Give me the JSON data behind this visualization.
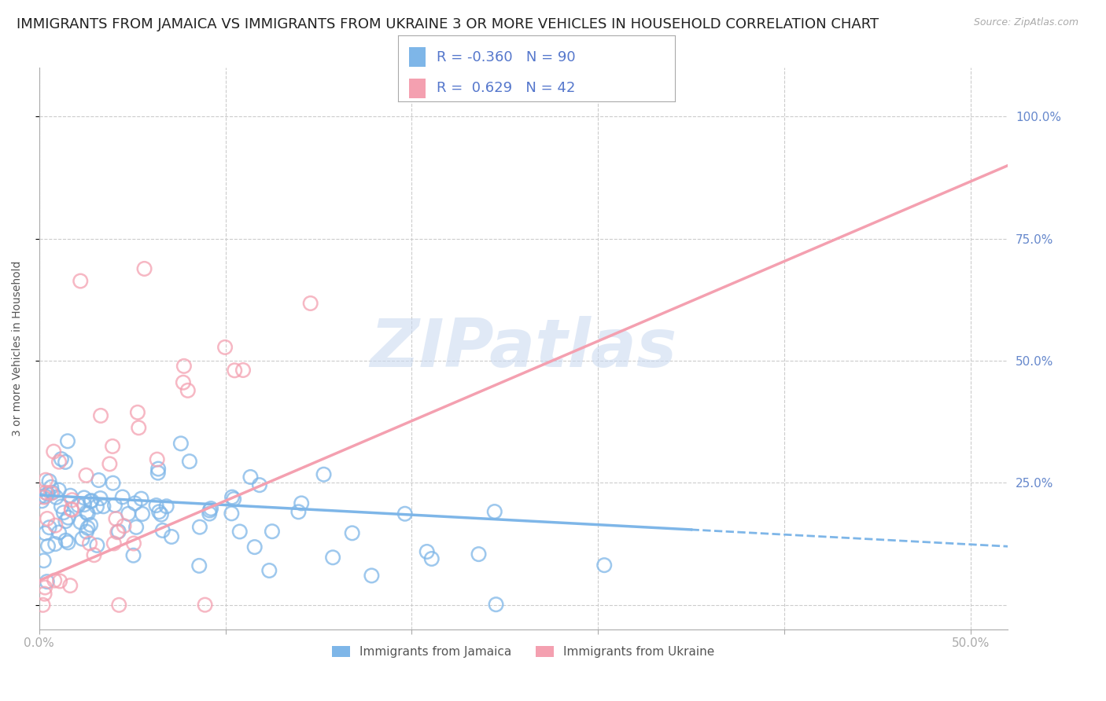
{
  "title": "IMMIGRANTS FROM JAMAICA VS IMMIGRANTS FROM UKRAINE 3 OR MORE VEHICLES IN HOUSEHOLD CORRELATION CHART",
  "source": "Source: ZipAtlas.com",
  "ylabel": "3 or more Vehicles in Household",
  "xlim": [
    0.0,
    0.52
  ],
  "ylim": [
    -0.05,
    1.1
  ],
  "yticks": [
    0.0,
    0.25,
    0.5,
    0.75,
    1.0
  ],
  "ytick_labels": [
    "",
    "25.0%",
    "50.0%",
    "75.0%",
    "100.0%"
  ],
  "xticks": [
    0.0,
    0.1,
    0.2,
    0.3,
    0.4,
    0.5
  ],
  "xtick_labels": [
    "0.0%",
    "",
    "",
    "",
    "",
    "50.0%"
  ],
  "jamaica_color": "#7eb6e8",
  "ukraine_color": "#f4a0b0",
  "jamaica_label": "Immigrants from Jamaica",
  "ukraine_label": "Immigrants from Ukraine",
  "jamaica_R": -0.36,
  "jamaica_N": 90,
  "ukraine_R": 0.629,
  "ukraine_N": 42,
  "watermark": "ZIPatlas",
  "background_color": "#ffffff",
  "grid_color": "#cccccc",
  "tick_label_color": "#6688cc",
  "title_fontsize": 13,
  "axis_label_fontsize": 10,
  "tick_fontsize": 11,
  "jamaica_trend_x": [
    0.0,
    0.52
  ],
  "jamaica_trend_y": [
    0.225,
    0.12
  ],
  "ukraine_trend_x": [
    0.0,
    0.52
  ],
  "ukraine_trend_y": [
    0.05,
    0.9
  ],
  "ukraine_trend_solid_end": 0.28,
  "jamaica_trend_solid_end": 0.35
}
